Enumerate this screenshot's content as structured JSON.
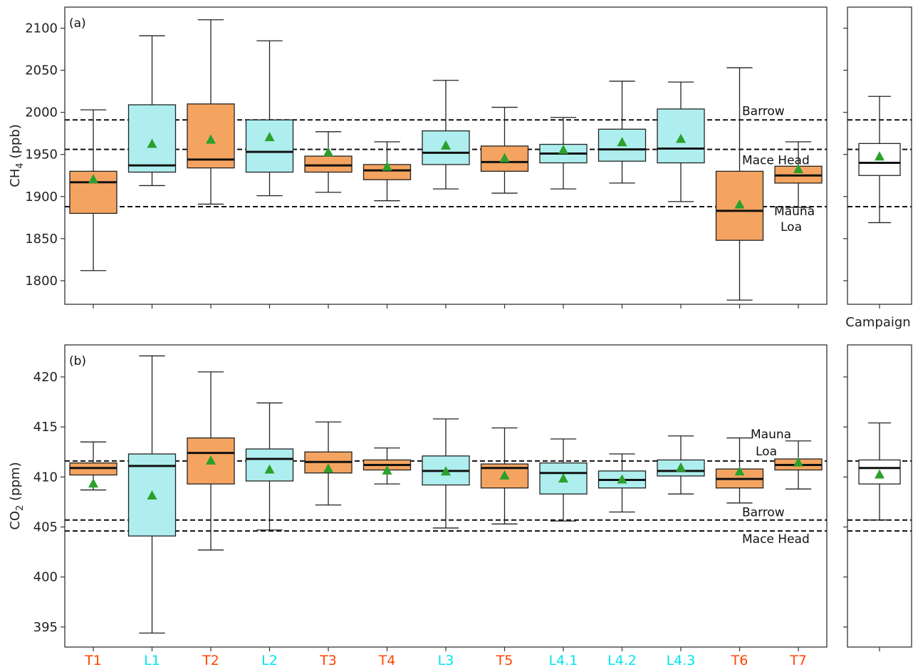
{
  "chart_data": [
    {
      "type": "box",
      "panel_label": "(a)",
      "ylabel_main": "CH",
      "ylabel_sub": "4",
      "ylabel_rest": " (ppb)",
      "ylim": [
        1772,
        2125
      ],
      "yticks": [
        1800,
        1850,
        1900,
        1950,
        2000,
        2050,
        2100
      ],
      "categories": [
        "T1",
        "L1",
        "T2",
        "L2",
        "T3",
        "T4",
        "L3",
        "T5",
        "L4.1",
        "L4.2",
        "L4.3",
        "T6",
        "T7"
      ],
      "category_types": [
        "T",
        "L",
        "T",
        "L",
        "T",
        "T",
        "L",
        "T",
        "L",
        "L",
        "L",
        "T",
        "T"
      ],
      "boxes": [
        {
          "whislo": 1812,
          "q1": 1880,
          "med": 1917,
          "q3": 1930,
          "whishi": 2003,
          "mean": 1920
        },
        {
          "whislo": 1913,
          "q1": 1929,
          "med": 1937,
          "q3": 2009,
          "whishi": 2091,
          "mean": 1962
        },
        {
          "whislo": 1891,
          "q1": 1934,
          "med": 1944,
          "q3": 2010,
          "whishi": 2110,
          "mean": 1967
        },
        {
          "whislo": 1901,
          "q1": 1929,
          "med": 1953,
          "q3": 1991,
          "whishi": 2085,
          "mean": 1970
        },
        {
          "whislo": 1905,
          "q1": 1929,
          "med": 1937,
          "q3": 1948,
          "whishi": 1977,
          "mean": 1952
        },
        {
          "whislo": 1895,
          "q1": 1920,
          "med": 1931,
          "q3": 1938,
          "whishi": 1965,
          "mean": 1935
        },
        {
          "whislo": 1909,
          "q1": 1938,
          "med": 1952,
          "q3": 1978,
          "whishi": 2038,
          "mean": 1960
        },
        {
          "whislo": 1904,
          "q1": 1930,
          "med": 1941,
          "q3": 1960,
          "whishi": 2006,
          "mean": 1945
        },
        {
          "whislo": 1909,
          "q1": 1940,
          "med": 1951,
          "q3": 1962,
          "whishi": 1994,
          "mean": 1955
        },
        {
          "whislo": 1916,
          "q1": 1942,
          "med": 1956,
          "q3": 1980,
          "whishi": 2037,
          "mean": 1964
        },
        {
          "whislo": 1894,
          "q1": 1940,
          "med": 1957,
          "q3": 2004,
          "whishi": 2036,
          "mean": 1968
        },
        {
          "whislo": 1777,
          "q1": 1848,
          "med": 1883,
          "q3": 1930,
          "whishi": 2053,
          "mean": 1890
        },
        {
          "whislo": 1887,
          "q1": 1916,
          "med": 1925,
          "q3": 1936,
          "whishi": 1965,
          "mean": 1932
        }
      ],
      "reference_lines": [
        {
          "name": "Barrow",
          "value": 1991
        },
        {
          "name": "Mace Head",
          "value": 1956
        },
        {
          "name": "Mauna",
          "name2": "Loa",
          "value": 1888
        }
      ],
      "campaign": {
        "label": "Campaign",
        "whislo": 1869,
        "q1": 1925,
        "med": 1940,
        "q3": 1963,
        "whishi": 2019,
        "mean": 1947
      }
    },
    {
      "type": "box",
      "panel_label": "(b)",
      "ylabel_main": "CO",
      "ylabel_sub": "2",
      "ylabel_rest": " (ppm)",
      "ylim": [
        393,
        423.2
      ],
      "yticks": [
        395,
        400,
        405,
        410,
        415,
        420
      ],
      "categories": [
        "T1",
        "L1",
        "T2",
        "L2",
        "T3",
        "T4",
        "L3",
        "T5",
        "L4.1",
        "L4.2",
        "L4.3",
        "T6",
        "T7"
      ],
      "category_types": [
        "T",
        "L",
        "T",
        "L",
        "T",
        "T",
        "L",
        "T",
        "L",
        "L",
        "L",
        "T",
        "T"
      ],
      "boxes": [
        {
          "whislo": 408.7,
          "q1": 410.2,
          "med": 410.9,
          "q3": 411.4,
          "whishi": 413.5,
          "mean": 409.3
        },
        {
          "whislo": 394.4,
          "q1": 404.1,
          "med": 411.1,
          "q3": 412.3,
          "whishi": 422.1,
          "mean": 408.1
        },
        {
          "whislo": 402.7,
          "q1": 409.3,
          "med": 412.4,
          "q3": 413.9,
          "whishi": 420.5,
          "mean": 411.6
        },
        {
          "whislo": 404.7,
          "q1": 409.6,
          "med": 411.8,
          "q3": 412.8,
          "whishi": 417.4,
          "mean": 410.7
        },
        {
          "whislo": 407.2,
          "q1": 410.4,
          "med": 411.5,
          "q3": 412.5,
          "whishi": 415.5,
          "mean": 410.8
        },
        {
          "whislo": 409.3,
          "q1": 410.7,
          "med": 411.2,
          "q3": 411.7,
          "whishi": 412.9,
          "mean": 410.6
        },
        {
          "whislo": 404.9,
          "q1": 409.2,
          "med": 410.6,
          "q3": 412.1,
          "whishi": 415.8,
          "mean": 410.5
        },
        {
          "whislo": 405.3,
          "q1": 408.9,
          "med": 410.9,
          "q3": 411.3,
          "whishi": 414.9,
          "mean": 410.1
        },
        {
          "whislo": 405.6,
          "q1": 408.3,
          "med": 410.4,
          "q3": 411.4,
          "whishi": 413.8,
          "mean": 409.8
        },
        {
          "whislo": 406.5,
          "q1": 408.9,
          "med": 409.7,
          "q3": 410.6,
          "whishi": 412.3,
          "mean": 409.7
        },
        {
          "whislo": 408.3,
          "q1": 410.1,
          "med": 410.6,
          "q3": 411.7,
          "whishi": 414.1,
          "mean": 410.9
        },
        {
          "whislo": 407.4,
          "q1": 408.9,
          "med": 409.8,
          "q3": 410.8,
          "whishi": 413.9,
          "mean": 410.5
        },
        {
          "whislo": 408.8,
          "q1": 410.7,
          "med": 411.2,
          "q3": 411.8,
          "whishi": 413.6,
          "mean": 411.4
        }
      ],
      "reference_lines": [
        {
          "name": "Mauna",
          "name2": "Loa",
          "value": 411.6
        },
        {
          "name": "Barrow",
          "value": 405.7
        },
        {
          "name": "Mace Head",
          "value": 404.6
        }
      ],
      "campaign": {
        "label": "",
        "whislo": 405.7,
        "q1": 409.3,
        "med": 410.9,
        "q3": 411.7,
        "whishi": 415.4,
        "mean": 410.2
      }
    }
  ],
  "colors": {
    "T": "#f4a460",
    "L": "#aeeeee",
    "campaign_box": "#ffffff",
    "T_label": "#ff4500",
    "L_label": "#00e5ee",
    "mean_marker": "#2ca02c"
  }
}
